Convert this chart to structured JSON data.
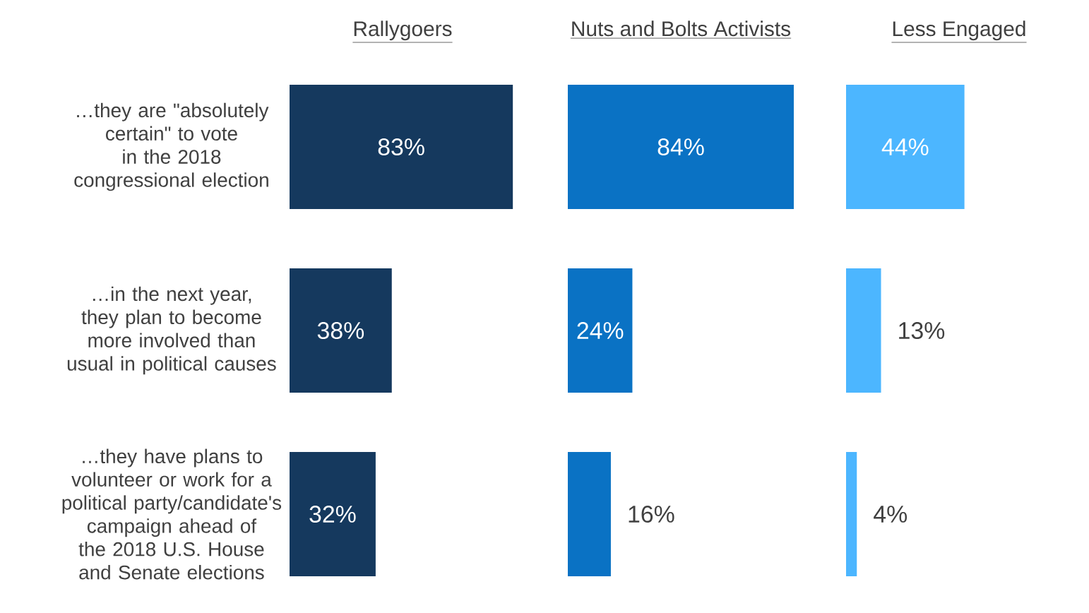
{
  "chart_data": [
    {
      "type": "bar",
      "orientation": "horizontal",
      "title": "Rallygoers",
      "categories": [
        "…they are \"absolutely certain\" to vote in the 2018 congressional election",
        "…in the next year, they plan to become more involved than usual in political causes",
        "…they have plans to volunteer or work for a political party/candidate's campaign ahead of the 2018 U.S. House and Senate elections"
      ],
      "values": [
        83,
        38,
        32
      ],
      "value_labels": [
        "83%",
        "38%",
        "32%"
      ],
      "color": "#15395e"
    },
    {
      "type": "bar",
      "orientation": "horizontal",
      "title": "Nuts and Bolts Activists",
      "categories": [
        null,
        null,
        null
      ],
      "values": [
        84,
        24,
        16
      ],
      "value_labels": [
        "84%",
        "24%",
        "16%"
      ],
      "color": "#0a72c4"
    },
    {
      "type": "bar",
      "orientation": "horizontal",
      "title": "Less Engaged",
      "categories": [
        null,
        null,
        null
      ],
      "values": [
        44,
        13,
        4
      ],
      "value_labels": [
        "44%",
        "13%",
        "4%"
      ],
      "color": "#4cb6ff"
    }
  ]
}
